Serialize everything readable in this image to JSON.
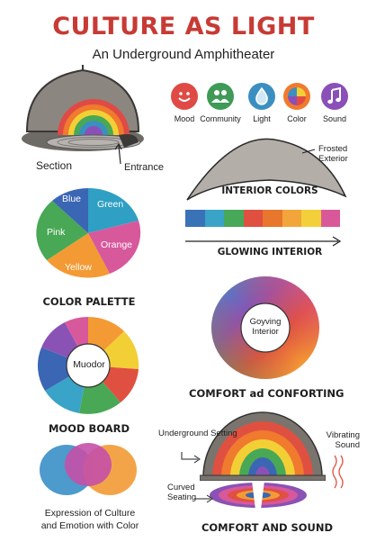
{
  "header": {
    "title": "CULTURE AS LIGHT",
    "subtitle": "An Underground Amphitheater"
  },
  "icons": [
    {
      "label": "Mood",
      "icon": "smile-icon",
      "color": "#e04a45"
    },
    {
      "label": "Community",
      "icon": "people-icon",
      "color": "#3e9a56"
    },
    {
      "label": "Light",
      "icon": "drop-icon",
      "color": "#3b8fc0"
    },
    {
      "label": "Color",
      "icon": "color-wheel-icon",
      "color": "#f07a2e"
    },
    {
      "label": "Sound",
      "icon": "music-note-icon",
      "color": "#8b4fb8"
    }
  ],
  "section": {
    "label": "Section",
    "entrance_label": "Entrance"
  },
  "exterior": {
    "frosted_label": "Frosted Exterior",
    "interior_colors_heading": "INTERIOR COLORS",
    "glowing_interior_heading": "GLOWING INTERIOR",
    "strip_colors": [
      "#3a72b8",
      "#3aa3c8",
      "#47a85a",
      "#e05040",
      "#e8762c",
      "#f2a53a",
      "#f3d03a",
      "#d9589a"
    ]
  },
  "palette": {
    "heading": "COLOR PALETTE",
    "slices": [
      {
        "label": "Blue",
        "color": "#3a66b4"
      },
      {
        "label": "Green",
        "color": "#2f9fc4"
      },
      {
        "label": "Orange",
        "color": "#d8589c"
      },
      {
        "label": "Yellow",
        "color": "#f39a34"
      },
      {
        "label": "Pink",
        "color": "#48a855"
      }
    ]
  },
  "wheel": {
    "center_label": "Goyving Interior",
    "heading": "COMFORT ad CONFORTING"
  },
  "mood_board": {
    "center_label": "Muodor",
    "heading": "MOOD BOARD",
    "segment_colors": [
      "#f39a34",
      "#f3cf36",
      "#e05040",
      "#48a855",
      "#3aa3c8",
      "#3a66b4",
      "#8a52b4",
      "#d8589c"
    ]
  },
  "expression": {
    "caption_line1": "Expression of Culture",
    "caption_line2": "and Emotion with Color"
  },
  "sound": {
    "underground_label": "Underground Setting",
    "vibrating_label": "Vibrating Sound",
    "curved_label": "Curved Seating",
    "heading": "COMFORT AND SOUND"
  }
}
